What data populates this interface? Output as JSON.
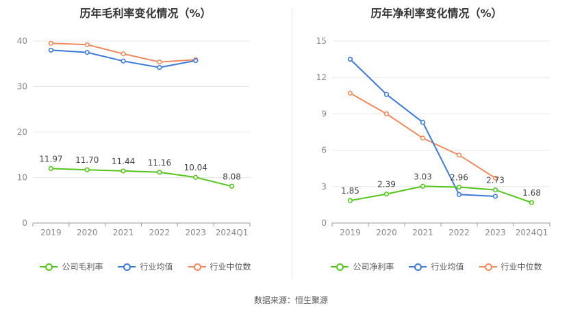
{
  "footer": {
    "source": "数据来源：恒生聚源"
  },
  "chart_data": [
    {
      "type": "line",
      "title": "历年毛利率变化情况（%）",
      "categories": [
        "2019",
        "2020",
        "2021",
        "2022",
        "2023",
        "2024Q1"
      ],
      "ylim": [
        0,
        40
      ],
      "yticks": [
        0,
        10,
        20,
        30,
        40
      ],
      "grid": true,
      "legend_position": "bottom",
      "series": [
        {
          "name": "公司毛利率",
          "color": "#52c41a",
          "values": [
            11.97,
            11.7,
            11.44,
            11.16,
            10.04,
            8.08
          ],
          "labels": [
            "11.97",
            "11.70",
            "11.44",
            "11.16",
            "10.04",
            "8.08"
          ]
        },
        {
          "name": "行业均值",
          "color": "#3c78d8",
          "values": [
            38.0,
            37.5,
            35.6,
            34.2,
            35.7,
            null
          ]
        },
        {
          "name": "行业中位数",
          "color": "#f08a5d",
          "values": [
            39.5,
            39.2,
            37.2,
            35.4,
            35.9,
            null
          ]
        }
      ]
    },
    {
      "type": "line",
      "title": "历年净利率变化情况（%）",
      "categories": [
        "2019",
        "2020",
        "2021",
        "2022",
        "2023",
        "2024Q1"
      ],
      "ylim": [
        0,
        15
      ],
      "yticks": [
        0,
        3,
        6,
        9,
        12,
        15
      ],
      "grid": true,
      "legend_position": "bottom",
      "series": [
        {
          "name": "公司净利率",
          "color": "#52c41a",
          "values": [
            1.85,
            2.39,
            3.03,
            2.96,
            2.73,
            1.68
          ],
          "labels": [
            "1.85",
            "2.39",
            "3.03",
            "2.96",
            "2.73",
            "1.68"
          ]
        },
        {
          "name": "行业均值",
          "color": "#3c78d8",
          "values": [
            13.5,
            10.6,
            8.3,
            2.35,
            2.2,
            null
          ]
        },
        {
          "name": "行业中位数",
          "color": "#f08a5d",
          "values": [
            10.7,
            9.0,
            7.0,
            5.6,
            3.7,
            null
          ]
        }
      ]
    }
  ]
}
